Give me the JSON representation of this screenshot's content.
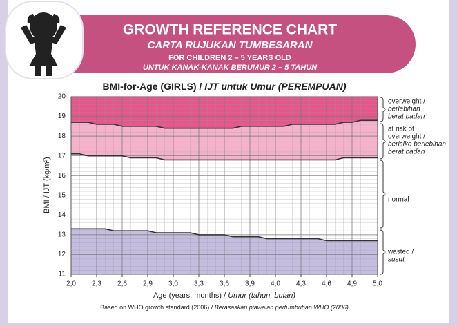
{
  "header": {
    "title": "GROWTH REFERENCE CHART",
    "title_alt": "CARTA RUJUKAN TUMBESARAN",
    "subtitle": "FOR CHILDREN 2 – 5 YEARS OLD",
    "subtitle_alt": "UNTUK KANAK-KANAK BERUMUR 2 – 5 TAHUN"
  },
  "chart_data": {
    "type": "line",
    "title": "BMI-for-Age (GIRLS) /",
    "title_alt": "IJT untuk Umur (PEREMPUAN)",
    "xlabel": "Age (years, months) /",
    "xlabel_alt": "Umur (tahun, bulan)",
    "ylabel": "BMI / IJT (kg/m²)",
    "footnote": "Based on WHO growth standard (2006) /",
    "footnote_alt": "Berasaskan piawaian pertumbuhan WHO (2006)",
    "x": [
      24,
      25,
      26,
      27,
      28,
      29,
      30,
      31,
      32,
      33,
      34,
      35,
      36,
      37,
      38,
      39,
      40,
      41,
      42,
      43,
      44,
      45,
      46,
      47,
      48,
      49,
      50,
      51,
      52,
      53,
      54,
      55,
      56,
      57,
      58,
      59,
      60
    ],
    "series": [
      {
        "color": "#333333",
        "values": [
          18.7,
          18.7,
          18.7,
          18.6,
          18.6,
          18.6,
          18.5,
          18.5,
          18.5,
          18.5,
          18.5,
          18.4,
          18.4,
          18.4,
          18.4,
          18.4,
          18.4,
          18.4,
          18.4,
          18.4,
          18.5,
          18.5,
          18.5,
          18.5,
          18.5,
          18.5,
          18.6,
          18.6,
          18.6,
          18.6,
          18.6,
          18.6,
          18.7,
          18.7,
          18.8,
          18.8,
          18.8
        ]
      },
      {
        "color": "#333333",
        "values": [
          17.1,
          17.1,
          17.0,
          17.0,
          17.0,
          17.0,
          17.0,
          16.9,
          16.9,
          16.9,
          16.9,
          16.8,
          16.8,
          16.8,
          16.8,
          16.8,
          16.8,
          16.8,
          16.8,
          16.8,
          16.8,
          16.8,
          16.8,
          16.8,
          16.8,
          16.8,
          16.8,
          16.8,
          16.8,
          16.8,
          16.8,
          16.8,
          16.9,
          16.9,
          16.9,
          16.9,
          16.9
        ]
      },
      {
        "color": "#333333",
        "values": [
          13.3,
          13.3,
          13.3,
          13.3,
          13.3,
          13.2,
          13.2,
          13.2,
          13.2,
          13.2,
          13.1,
          13.1,
          13.1,
          13.1,
          13.1,
          13.0,
          13.0,
          13.0,
          13.0,
          12.9,
          12.9,
          12.9,
          12.9,
          12.8,
          12.8,
          12.8,
          12.8,
          12.8,
          12.8,
          12.8,
          12.7,
          12.7,
          12.7,
          12.7,
          12.7,
          12.7,
          12.7
        ]
      }
    ],
    "band_colors": [
      "#e4578a",
      "#f5b3cb",
      "#ffffff",
      "#c5bde0"
    ],
    "band_labels": [
      {
        "lines": [
          "overweight /"
        ],
        "italic_lines": [
          "berlebihan",
          "berat badan"
        ]
      },
      {
        "lines": [
          "at risk of",
          "overweight /"
        ],
        "italic_lines": [
          "berisiko berlebihan",
          "berat badan"
        ]
      },
      {
        "lines": [
          "normal"
        ],
        "italic_lines": []
      },
      {
        "lines": [
          "wasted /"
        ],
        "italic_lines": [
          "susut"
        ]
      }
    ],
    "xlim": [
      24,
      60
    ],
    "xticks": [
      {
        "value": 24,
        "label": "2,0"
      },
      {
        "value": 27,
        "label": "2,3"
      },
      {
        "value": 30,
        "label": "2,6"
      },
      {
        "value": 33,
        "label": "2,9"
      },
      {
        "value": 36,
        "label": "3,0"
      },
      {
        "value": 39,
        "label": "3,3"
      },
      {
        "value": 42,
        "label": "3,6"
      },
      {
        "value": 45,
        "label": "3,9"
      },
      {
        "value": 48,
        "label": "4,0"
      },
      {
        "value": 51,
        "label": "4,3"
      },
      {
        "value": 54,
        "label": "4,6"
      },
      {
        "value": 57,
        "label": "4,9"
      },
      {
        "value": 60,
        "label": "5,0"
      }
    ],
    "ylim": [
      11,
      20
    ],
    "yticks": [
      11,
      12,
      13,
      14,
      15,
      16,
      17,
      18,
      19,
      20
    ],
    "grid": true
  }
}
